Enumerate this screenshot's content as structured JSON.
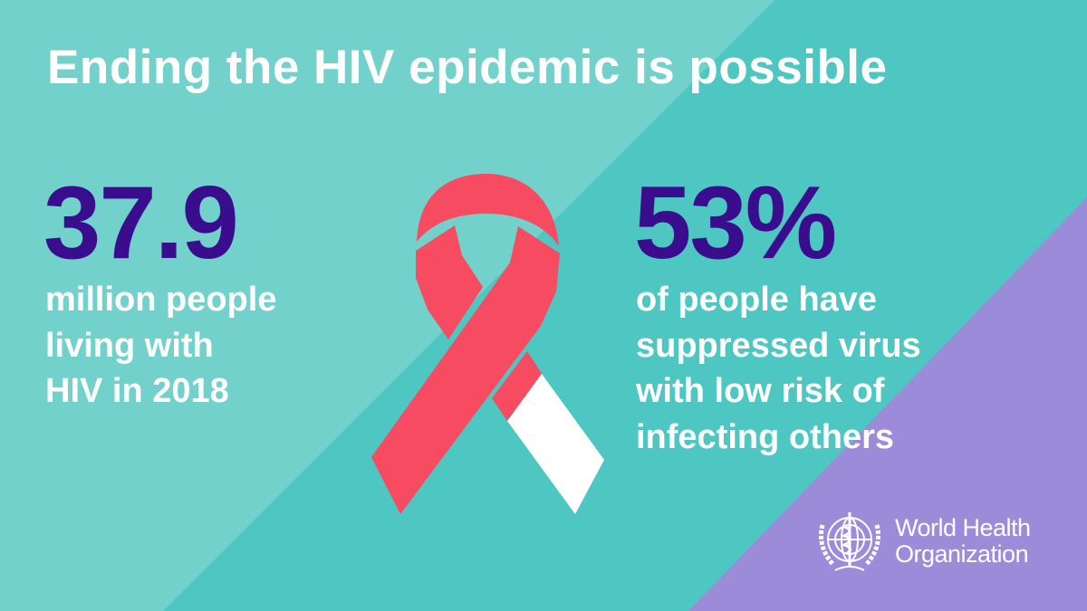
{
  "title": "Ending the HIV epidemic is possible",
  "left_stat": {
    "value": "37.9",
    "lines": [
      "million people",
      "living with",
      "HIV in 2018"
    ]
  },
  "right_stat": {
    "value": "53%",
    "lines": [
      "of people have",
      "suppressed virus",
      "with low risk of",
      "infecting others"
    ]
  },
  "logo": {
    "lines": [
      "World Health",
      "Organization"
    ],
    "icon": "who-emblem-icon"
  },
  "colors": {
    "background": "#4ec6c2",
    "background_light": "#73d1cc",
    "accent_purple": "#9b8bd9",
    "stat_color": "#3a0d8f",
    "ribbon_red": "#f64b60",
    "ribbon_white": "#ffffff"
  }
}
